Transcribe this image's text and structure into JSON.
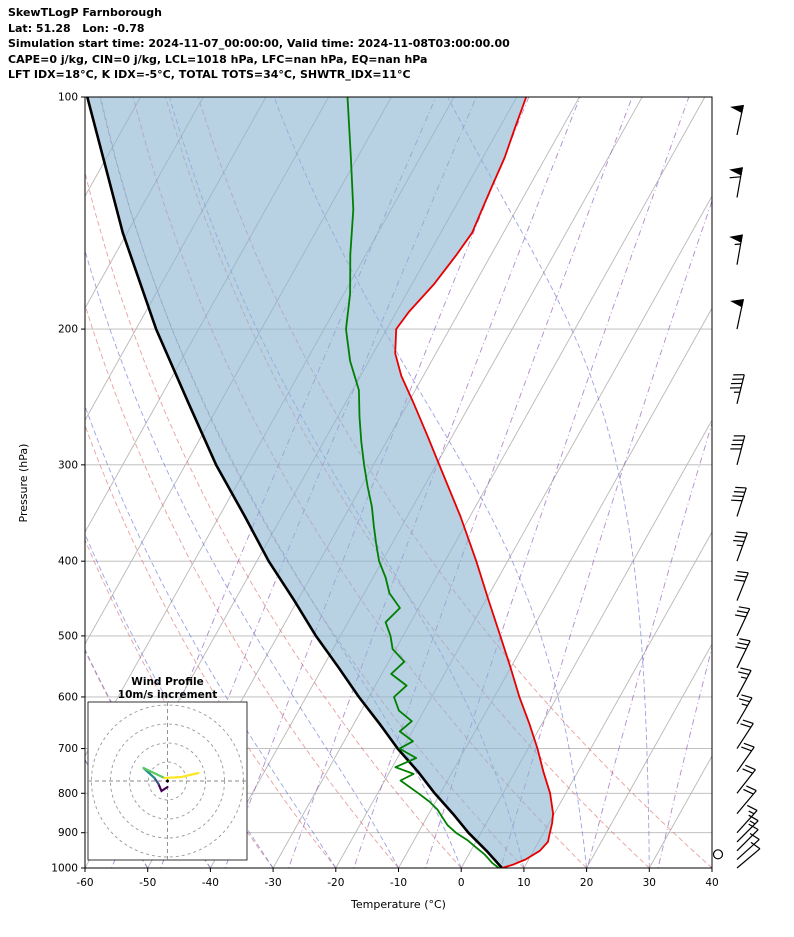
{
  "header": {
    "line1": "SkewTLogP Farnborough",
    "line2": "Lat: 51.28   Lon: -0.78",
    "line3": "Simulation start time: 2024-11-07_00:00:00, Valid time: 2024-11-08T03:00:00.00",
    "line4": "CAPE=0 j/kg, CIN=0 j/kg, LCL=1018 hPa, LFC=nan hPa, EQ=nan hPa",
    "line5": "LFT IDX=18°C, K IDX=-5°C, TOTAL TOTS=34°C, SHWTR_IDX=11°C"
  },
  "chart_data": {
    "type": "line",
    "title": "SkewTLogP Farnborough",
    "xlabel": "Temperature (°C)",
    "ylabel": "Pressure (hPa)",
    "xlim": [
      -60,
      40
    ],
    "pressure_range_hpa": [
      1000,
      100
    ],
    "x_ticks": [
      -60,
      -50,
      -40,
      -30,
      -20,
      -10,
      0,
      10,
      20,
      30,
      40
    ],
    "pressure_ticks": [
      100,
      200,
      300,
      400,
      500,
      600,
      700,
      800,
      900,
      1000
    ],
    "temperature_profile": {
      "pressure": [
        1000,
        990,
        975,
        950,
        925,
        900,
        875,
        850,
        800,
        750,
        700,
        650,
        600,
        550,
        500,
        450,
        400,
        350,
        300,
        275,
        250,
        230,
        215,
        200,
        190,
        175,
        160,
        150,
        140,
        130,
        120,
        110,
        100
      ],
      "temp_c": [
        6.5,
        8.0,
        9.5,
        11.0,
        11.5,
        11.0,
        10.5,
        9.8,
        7.5,
        4.5,
        1.5,
        -2.0,
        -6.0,
        -10.0,
        -14.5,
        -19.5,
        -25.0,
        -31.5,
        -39.5,
        -44.0,
        -49.0,
        -53.5,
        -56.5,
        -58.5,
        -58.0,
        -56.5,
        -55.5,
        -55.0,
        -55.5,
        -56.0,
        -56.5,
        -57.5,
        -58.5
      ]
    },
    "dewpoint_profile": {
      "pressure": [
        1000,
        985,
        960,
        940,
        920,
        900,
        880,
        860,
        840,
        820,
        800,
        785,
        770,
        755,
        740,
        720,
        700,
        685,
        665,
        645,
        625,
        600,
        580,
        560,
        540,
        520,
        500,
        480,
        460,
        440,
        420,
        400,
        380,
        360,
        340,
        320,
        300,
        280,
        260,
        240,
        220,
        200,
        180,
        160,
        140,
        120,
        100
      ],
      "temp_c": [
        6.0,
        4.5,
        2.5,
        0.5,
        -1.5,
        -4.0,
        -6.0,
        -7.5,
        -9.0,
        -11.0,
        -13.5,
        -15.5,
        -17.5,
        -16.0,
        -19.5,
        -17.0,
        -20.5,
        -19.0,
        -22.0,
        -21.0,
        -24.0,
        -26.0,
        -25.0,
        -28.5,
        -27.5,
        -30.5,
        -32.0,
        -34.0,
        -33.0,
        -36.0,
        -38.0,
        -40.5,
        -42.5,
        -44.5,
        -46.5,
        -49.0,
        -51.5,
        -54.0,
        -56.5,
        -59.0,
        -63.0,
        -66.5,
        -69.0,
        -72.5,
        -76.0,
        -81.0,
        -87.0
      ]
    },
    "parcel_profile": {
      "pressure": [
        1000,
        950,
        900,
        850,
        800,
        750,
        700,
        650,
        600,
        550,
        500,
        450,
        400,
        350,
        300,
        250,
        200,
        150,
        100
      ],
      "temp_c": [
        6.5,
        2.5,
        -2.0,
        -6.2,
        -10.9,
        -15.5,
        -20.8,
        -25.9,
        -31.6,
        -37.4,
        -43.9,
        -50.5,
        -58.1,
        -65.9,
        -75.1,
        -84.9,
        -96.8,
        -110.7,
        -128.5
      ]
    },
    "winds": [
      {
        "p": 960,
        "speed_kt": 0,
        "dir_deg": 0
      },
      {
        "p": 1000,
        "speed_kt": 8,
        "dir_deg": 50
      },
      {
        "p": 975,
        "speed_kt": 10,
        "dir_deg": 48
      },
      {
        "p": 950,
        "speed_kt": 12,
        "dir_deg": 45
      },
      {
        "p": 925,
        "speed_kt": 15,
        "dir_deg": 45
      },
      {
        "p": 900,
        "speed_kt": 15,
        "dir_deg": 42
      },
      {
        "p": 850,
        "speed_kt": 18,
        "dir_deg": 40
      },
      {
        "p": 800,
        "speed_kt": 20,
        "dir_deg": 38
      },
      {
        "p": 750,
        "speed_kt": 20,
        "dir_deg": 35
      },
      {
        "p": 700,
        "speed_kt": 22,
        "dir_deg": 33
      },
      {
        "p": 650,
        "speed_kt": 25,
        "dir_deg": 30
      },
      {
        "p": 600,
        "speed_kt": 25,
        "dir_deg": 28
      },
      {
        "p": 550,
        "speed_kt": 28,
        "dir_deg": 26
      },
      {
        "p": 500,
        "speed_kt": 30,
        "dir_deg": 25
      },
      {
        "p": 450,
        "speed_kt": 32,
        "dir_deg": 22
      },
      {
        "p": 400,
        "speed_kt": 35,
        "dir_deg": 20
      },
      {
        "p": 350,
        "speed_kt": 38,
        "dir_deg": 18
      },
      {
        "p": 300,
        "speed_kt": 42,
        "dir_deg": 15
      },
      {
        "p": 250,
        "speed_kt": 45,
        "dir_deg": 14
      },
      {
        "p": 200,
        "speed_kt": 50,
        "dir_deg": 12
      },
      {
        "p": 165,
        "speed_kt": 55,
        "dir_deg": 10
      },
      {
        "p": 135,
        "speed_kt": 58,
        "dir_deg": 10
      },
      {
        "p": 112,
        "speed_kt": 52,
        "dir_deg": 12
      }
    ],
    "grid": {
      "isotherm_step_c": 10,
      "dry_adiabats_theta_c": [
        -60,
        -50,
        -40,
        -30,
        -20,
        -10,
        0,
        10,
        20,
        30,
        40
      ],
      "moist_adiabats_t0_c": [
        -60,
        -50,
        -40,
        -30,
        -20,
        -10,
        0,
        10,
        20,
        30,
        40
      ],
      "mixing_ratio_g_kg": [
        0.02,
        0.05,
        0.15,
        0.4,
        1,
        2.5,
        6,
        15,
        30
      ]
    }
  },
  "hodograph": {
    "title": "Wind Profile",
    "subtitle": "10m/s increment",
    "rings_m_s": [
      10,
      20,
      30,
      40
    ],
    "trace": [
      {
        "color": "#440154",
        "points": [
          [
            0,
            6
          ],
          [
            -6,
            10
          ],
          [
            -9,
            3
          ]
        ]
      },
      {
        "color": "#3b528b",
        "points": [
          [
            -9,
            3
          ],
          [
            -13,
            -3
          ]
        ]
      },
      {
        "color": "#21918c",
        "points": [
          [
            -13,
            -3
          ],
          [
            -24,
            -13
          ]
        ]
      },
      {
        "color": "#5ec962",
        "points": [
          [
            -24,
            -13
          ],
          [
            -3,
            -3
          ]
        ]
      },
      {
        "color": "#fde725",
        "points": [
          [
            -3,
            -3
          ],
          [
            14,
            -4
          ],
          [
            31,
            -8
          ]
        ]
      }
    ]
  },
  "colors": {
    "temperature": "#e60000",
    "dewpoint": "#008000",
    "parcel": "#000000",
    "shade": "rgba(140,180,210,0.62)",
    "grid_gray": "#b8b8b8",
    "dry_adiabat": "rgba(214,80,80,0.55)",
    "moist_adiabat": "rgba(70,90,200,0.55)",
    "mixing_ratio": "rgba(150,100,190,0.75)",
    "barb": "#000000",
    "hodo_ring": "#999999",
    "hodo_cross": "#888888"
  }
}
